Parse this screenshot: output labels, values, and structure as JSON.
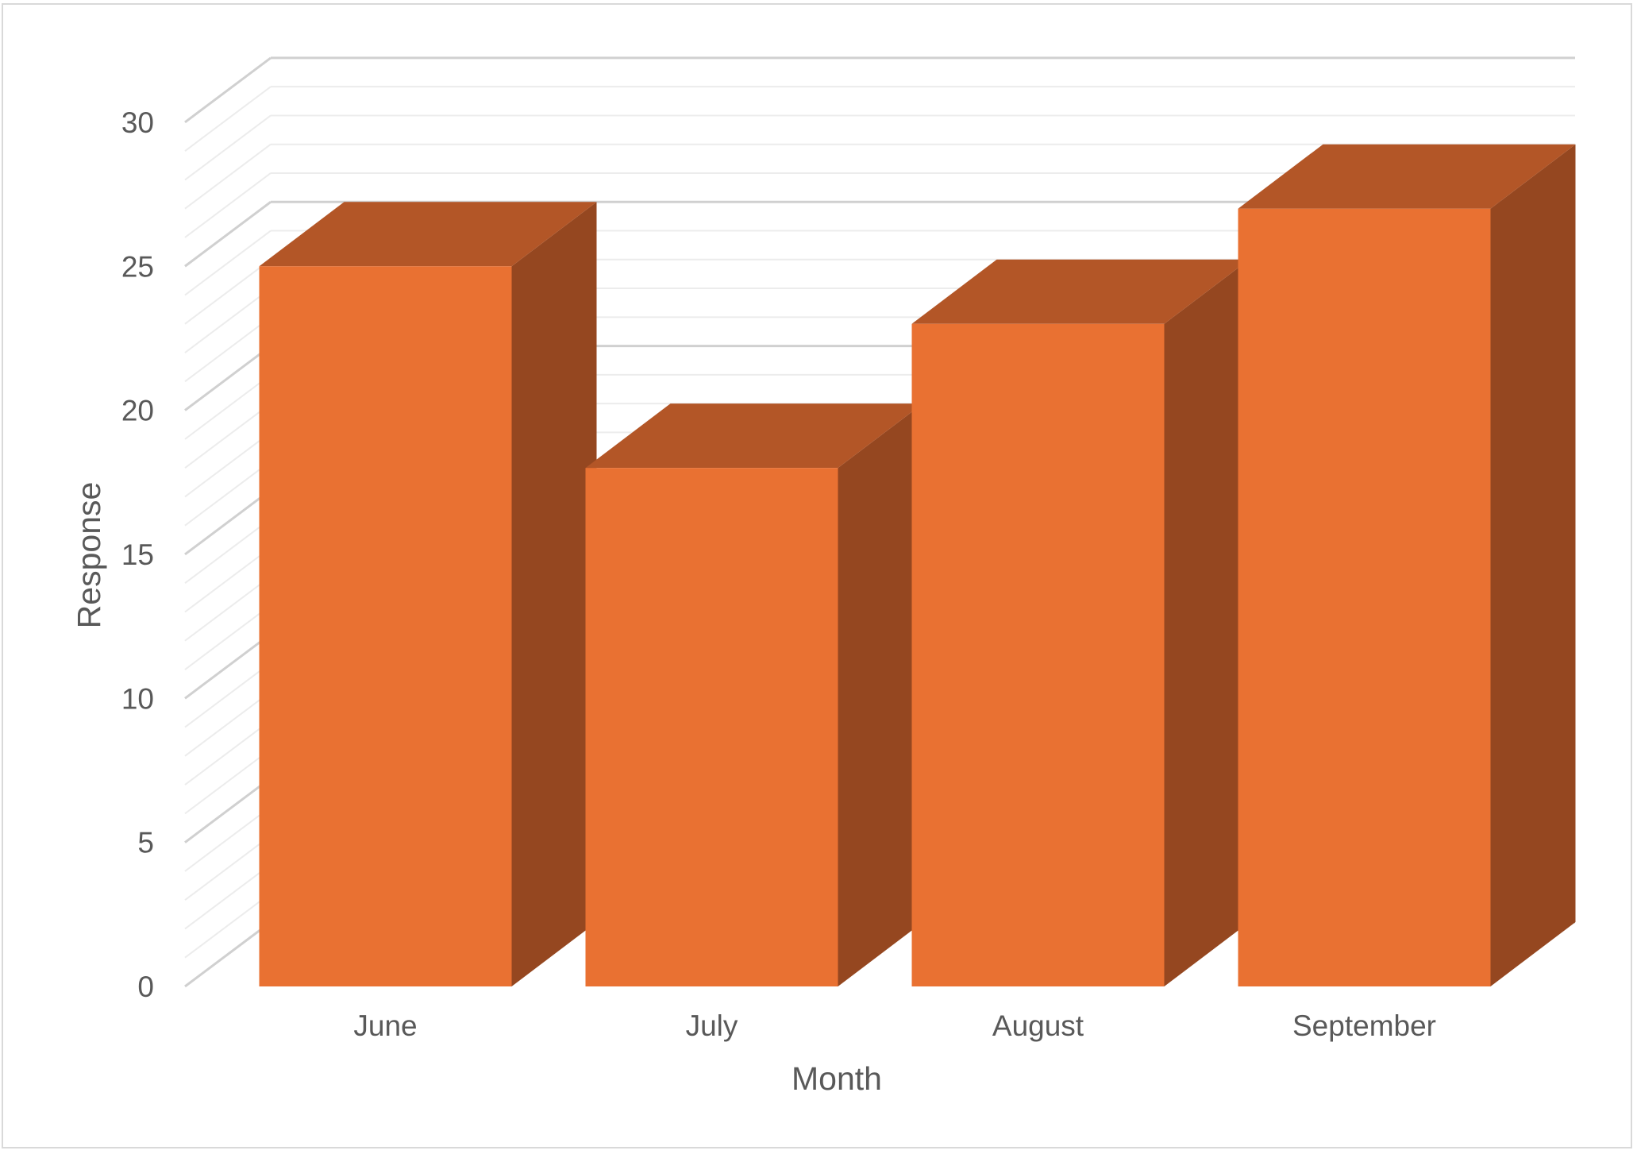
{
  "chart_data": {
    "type": "bar",
    "style": "3d-column",
    "categories": [
      "June",
      "July",
      "August",
      "September"
    ],
    "values": [
      25,
      18,
      23,
      27
    ],
    "xlabel": "Month",
    "ylabel": "Response",
    "ylim": [
      0,
      30
    ],
    "yticks": [
      "0",
      "5",
      "10",
      "15",
      "20",
      "25",
      "30"
    ],
    "grid": true,
    "legend": "none",
    "colors": {
      "bar_front": "#e97132",
      "bar_top": "#b35627",
      "bar_side": "#954720",
      "gridline": "#d9d9d9",
      "text": "#595959"
    }
  }
}
